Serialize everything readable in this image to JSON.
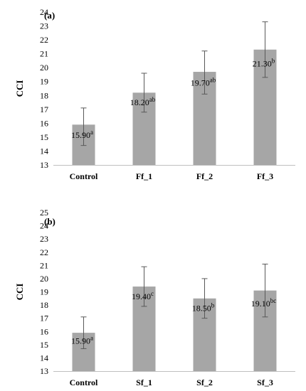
{
  "chart_data": [
    {
      "type": "bar",
      "panel_label": "(a)",
      "ylabel": "CCI",
      "ylim": [
        13,
        24
      ],
      "yticks": [
        13,
        14,
        15,
        16,
        17,
        18,
        19,
        20,
        21,
        22,
        23,
        24
      ],
      "categories": [
        "Control",
        "Ff_1",
        "Ff_2",
        "Ff_3"
      ],
      "values": [
        15.9,
        18.2,
        19.7,
        21.3
      ],
      "error_low": [
        14.4,
        16.8,
        18.1,
        19.3
      ],
      "error_high": [
        17.1,
        19.6,
        21.2,
        23.3
      ],
      "value_labels": [
        "15.90",
        "18.20",
        "19.70",
        "21.30"
      ],
      "significance": [
        "a",
        "ab",
        "ab",
        "b"
      ],
      "bar_color": "#a6a6a6",
      "grid": false
    },
    {
      "type": "bar",
      "panel_label": "(b)",
      "ylabel": "CCI",
      "ylim": [
        13,
        25
      ],
      "yticks": [
        13,
        14,
        15,
        16,
        17,
        18,
        19,
        20,
        21,
        22,
        23,
        24,
        25
      ],
      "categories": [
        "Control",
        "Sf_1",
        "Sf_2",
        "Sf_3"
      ],
      "values": [
        15.9,
        19.4,
        18.5,
        19.1
      ],
      "error_low": [
        14.7,
        17.9,
        17.0,
        17.1
      ],
      "error_high": [
        17.1,
        20.9,
        20.0,
        21.1
      ],
      "value_labels": [
        "15.90",
        "19.40",
        "18.50",
        "19.10"
      ],
      "significance": [
        "a",
        "c",
        "b",
        "bc"
      ],
      "bar_color": "#a6a6a6",
      "grid": false
    }
  ]
}
